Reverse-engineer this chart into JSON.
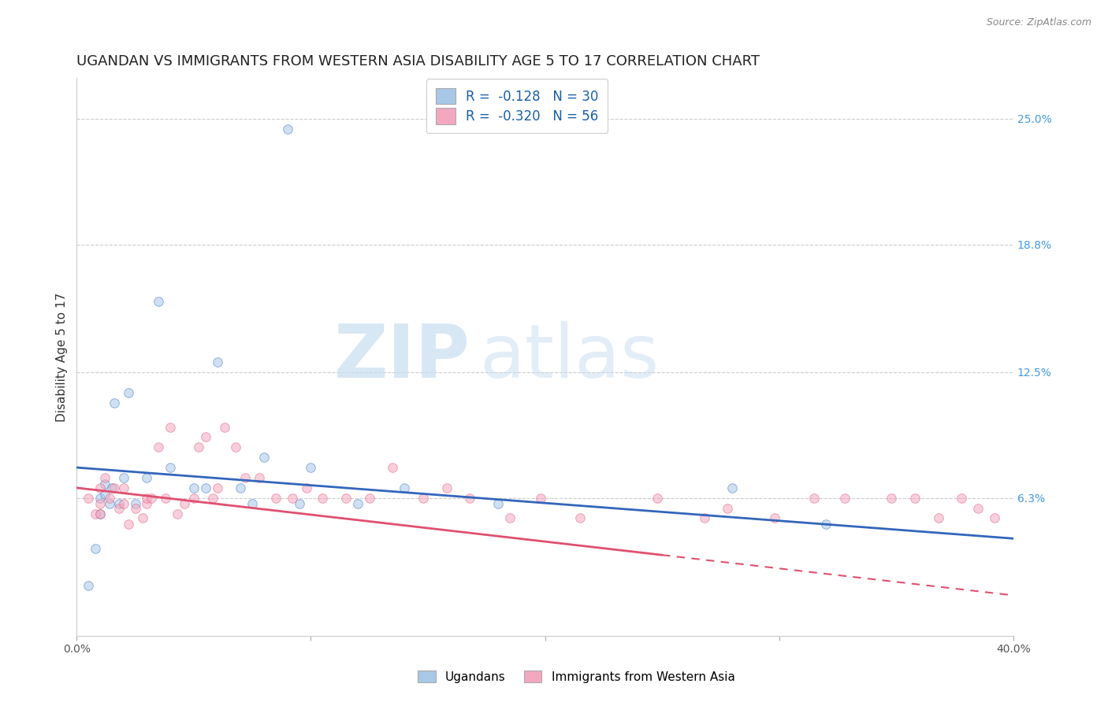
{
  "title": "UGANDAN VS IMMIGRANTS FROM WESTERN ASIA DISABILITY AGE 5 TO 17 CORRELATION CHART",
  "source": "Source: ZipAtlas.com",
  "ylabel": "Disability Age 5 to 17",
  "xlim": [
    0.0,
    0.4
  ],
  "ylim": [
    -0.005,
    0.27
  ],
  "x_ticks": [
    0.0,
    0.1,
    0.2,
    0.3,
    0.4
  ],
  "x_tick_labels": [
    "0.0%",
    "",
    "",
    "",
    "40.0%"
  ],
  "y_ticks_right": [
    0.25,
    0.188,
    0.125,
    0.063
  ],
  "y_tick_labels_right": [
    "25.0%",
    "18.8%",
    "12.5%",
    "6.3%"
  ],
  "color_ugandan": "#a8c8e8",
  "color_western_asia": "#f4a8c0",
  "color_line_ugandan": "#3366bb",
  "color_line_western_asia": "#e05070",
  "ugandan_x": [
    0.005,
    0.008,
    0.01,
    0.01,
    0.012,
    0.012,
    0.014,
    0.015,
    0.016,
    0.018,
    0.02,
    0.022,
    0.025,
    0.03,
    0.035,
    0.04,
    0.05,
    0.055,
    0.06,
    0.07,
    0.075,
    0.08,
    0.09,
    0.095,
    0.1,
    0.12,
    0.14,
    0.18,
    0.28,
    0.32
  ],
  "ugandan_y": [
    0.02,
    0.038,
    0.055,
    0.063,
    0.065,
    0.07,
    0.06,
    0.068,
    0.11,
    0.06,
    0.073,
    0.115,
    0.06,
    0.073,
    0.16,
    0.078,
    0.068,
    0.068,
    0.13,
    0.068,
    0.06,
    0.083,
    0.245,
    0.06,
    0.078,
    0.06,
    0.068,
    0.06,
    0.068,
    0.05
  ],
  "western_asia_x": [
    0.005,
    0.008,
    0.01,
    0.01,
    0.01,
    0.012,
    0.014,
    0.016,
    0.018,
    0.02,
    0.02,
    0.022,
    0.025,
    0.028,
    0.03,
    0.03,
    0.032,
    0.035,
    0.038,
    0.04,
    0.043,
    0.046,
    0.05,
    0.052,
    0.055,
    0.058,
    0.06,
    0.063,
    0.068,
    0.072,
    0.078,
    0.085,
    0.092,
    0.098,
    0.105,
    0.115,
    0.125,
    0.135,
    0.148,
    0.158,
    0.168,
    0.185,
    0.198,
    0.215,
    0.248,
    0.268,
    0.278,
    0.298,
    0.315,
    0.328,
    0.348,
    0.358,
    0.368,
    0.378,
    0.385,
    0.392
  ],
  "western_asia_y": [
    0.063,
    0.055,
    0.055,
    0.06,
    0.068,
    0.073,
    0.063,
    0.068,
    0.058,
    0.06,
    0.068,
    0.05,
    0.058,
    0.053,
    0.06,
    0.063,
    0.063,
    0.088,
    0.063,
    0.098,
    0.055,
    0.06,
    0.063,
    0.088,
    0.093,
    0.063,
    0.068,
    0.098,
    0.088,
    0.073,
    0.073,
    0.063,
    0.063,
    0.068,
    0.063,
    0.063,
    0.063,
    0.078,
    0.063,
    0.068,
    0.063,
    0.053,
    0.063,
    0.053,
    0.063,
    0.053,
    0.058,
    0.053,
    0.063,
    0.063,
    0.063,
    0.063,
    0.053,
    0.063,
    0.058,
    0.053
  ],
  "line_ugandan_x0": 0.0,
  "line_ugandan_y0": 0.078,
  "line_ugandan_x1": 0.4,
  "line_ugandan_y1": 0.043,
  "line_western_asia_x0": 0.0,
  "line_western_asia_y0": 0.068,
  "line_western_asia_x1": 0.4,
  "line_western_asia_y1": 0.015,
  "line_western_asia_dashed_start": 0.25,
  "watermark_zip_color": "#c8ddf0",
  "watermark_atlas_color": "#c8ddf0",
  "bg_color": "#ffffff",
  "grid_color": "#cccccc",
  "title_fontsize": 13,
  "label_fontsize": 11,
  "tick_fontsize": 10,
  "scatter_size": 70,
  "scatter_alpha": 0.55
}
